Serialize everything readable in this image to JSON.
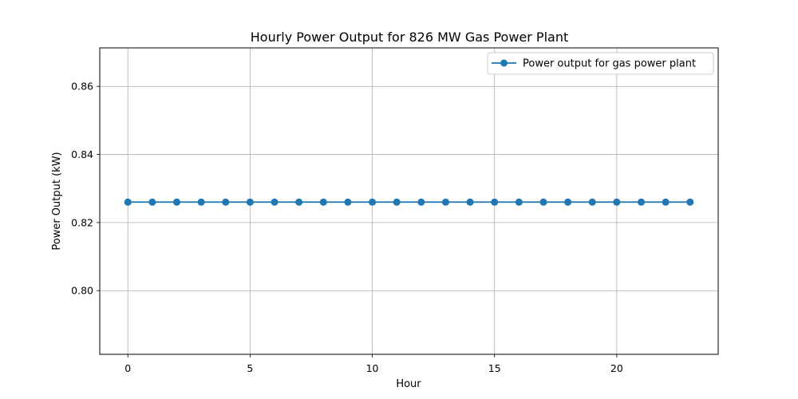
{
  "chart_data": {
    "type": "line",
    "title": "Hourly Power Output for 826 MW Gas Power Plant",
    "xlabel": "Hour",
    "ylabel": "Power Output (kW)",
    "xlim": [
      -1.15,
      24.15
    ],
    "ylim": [
      0.7813,
      0.8713
    ],
    "xticks": [
      0,
      5,
      10,
      15,
      20
    ],
    "yticks": [
      0.8,
      0.82,
      0.84,
      0.86
    ],
    "ytick_labels": [
      "0.80",
      "0.82",
      "0.84",
      "0.86"
    ],
    "grid": true,
    "legend_position": "top-right",
    "x": [
      0,
      1,
      2,
      3,
      4,
      5,
      6,
      7,
      8,
      9,
      10,
      11,
      12,
      13,
      14,
      15,
      16,
      17,
      18,
      19,
      20,
      21,
      22,
      23
    ],
    "series": [
      {
        "name": "Power output for gas power plant",
        "color": "#1f77b4",
        "marker": "circle",
        "values": [
          0.826,
          0.826,
          0.826,
          0.826,
          0.826,
          0.826,
          0.826,
          0.826,
          0.826,
          0.826,
          0.826,
          0.826,
          0.826,
          0.826,
          0.826,
          0.826,
          0.826,
          0.826,
          0.826,
          0.826,
          0.826,
          0.826,
          0.826,
          0.826
        ]
      }
    ]
  }
}
